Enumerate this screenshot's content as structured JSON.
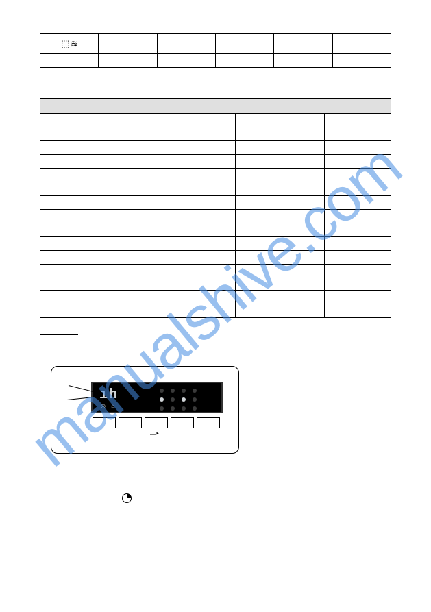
{
  "watermark": {
    "text": "manualshive.com",
    "color": "#468ce1"
  },
  "top_table": {
    "type": "table",
    "rows": 2,
    "cols": 6,
    "icon_cell_text": "⬚ ≋",
    "cells": [
      [
        "icon",
        "",
        "",
        "",
        "",
        ""
      ],
      [
        "",
        "",
        "",
        "",
        "",
        ""
      ]
    ],
    "border_color": "#000000"
  },
  "main_table": {
    "type": "table",
    "columns": [
      "",
      "",
      "",
      ""
    ],
    "body_rows": 13,
    "tall_row_index": 10,
    "header_bg": "#e0e0e0",
    "border_color": "#000000"
  },
  "panel": {
    "screen_bg": "#000000",
    "screen_fg": "#cfd3d6",
    "digits": "ıh",
    "lower_glyphs": "◎   ⌂",
    "dots": [
      [
        "off",
        "off",
        "off",
        "off"
      ],
      [
        "on",
        "off",
        "on",
        "off"
      ],
      [
        "off",
        "off",
        "off",
        "off"
      ]
    ],
    "button_count": 5,
    "under_label": "⎼▸"
  },
  "glyphs": {
    "clock": "◔"
  },
  "colors": {
    "background": "#ffffff",
    "border": "#000000",
    "watermark": "#468ce1",
    "screen_bg": "#000000",
    "screen_fg": "#cfd3d6",
    "header_bg": "#e0e0e0"
  }
}
